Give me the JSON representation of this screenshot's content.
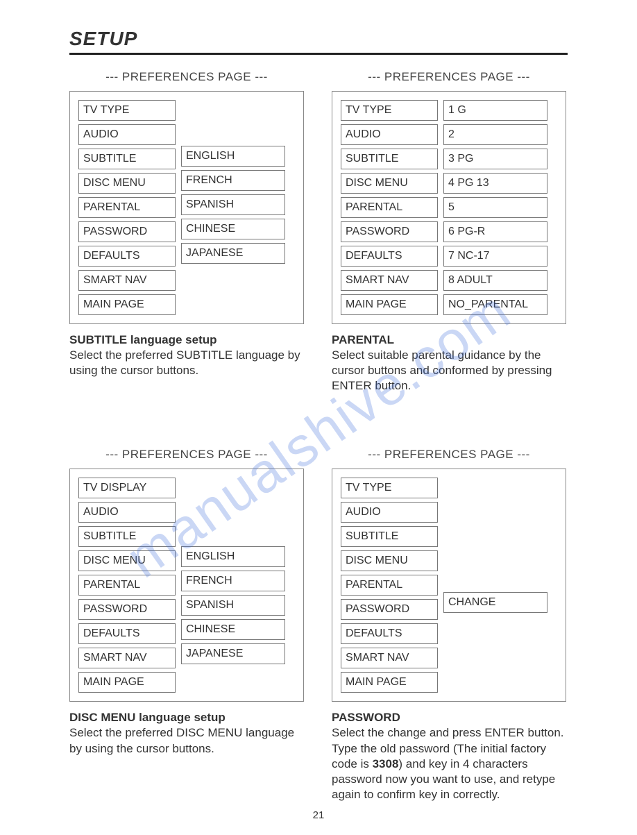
{
  "chapter_title": "SETUP",
  "page_number": "21",
  "watermark": "manualshive.com",
  "panel_heading": "--- PREFERENCES PAGE ---",
  "panels": {
    "subtitle": {
      "left": [
        "TV TYPE",
        "AUDIO",
        "SUBTITLE",
        "DISC MENU",
        "PARENTAL",
        "PASSWORD",
        "DEFAULTS",
        "SMART NAV",
        "MAIN PAGE"
      ],
      "right": [
        "",
        "",
        "ENGLISH",
        "FRENCH",
        "SPANISH",
        "CHINESE",
        "JAPANESE",
        "",
        ""
      ]
    },
    "parental": {
      "left": [
        "TV TYPE",
        "AUDIO",
        "SUBTITLE",
        "DISC MENU",
        "PARENTAL",
        "PASSWORD",
        "DEFAULTS",
        "SMART NAV",
        "MAIN PAGE"
      ],
      "right": [
        "1 G",
        "2",
        "3 PG",
        "4 PG 13",
        "5",
        "6 PG-R",
        "7 NC-17",
        "8 ADULT",
        "NO_PARENTAL"
      ]
    },
    "discmenu": {
      "left": [
        "TV DISPLAY",
        "AUDIO",
        "SUBTITLE",
        "DISC MENU",
        "PARENTAL",
        "PASSWORD",
        "DEFAULTS",
        "SMART NAV",
        "MAIN PAGE"
      ],
      "right": [
        "",
        "",
        "",
        "ENGLISH",
        "FRENCH",
        "SPANISH",
        "CHINESE",
        "JAPANESE",
        ""
      ]
    },
    "password": {
      "left": [
        "TV TYPE",
        "AUDIO",
        "SUBTITLE",
        "DISC MENU",
        "PARENTAL",
        "PASSWORD",
        "DEFAULTS",
        "SMART NAV",
        "MAIN PAGE"
      ],
      "right": [
        "",
        "",
        "",
        "",
        "",
        "CHANGE",
        "",
        "",
        ""
      ]
    }
  },
  "explain": {
    "subtitle": {
      "head": "SUBTITLE language setup",
      "body": "Select the preferred SUBTITLE language by using the cursor buttons."
    },
    "parental": {
      "head": "PARENTAL",
      "body": "Select suitable parental guidance by the cursor buttons and conformed by pressing ENTER button."
    },
    "discmenu": {
      "head": "DISC MENU language setup",
      "body": "Select the preferred DISC MENU language by using the cursor buttons."
    },
    "password": {
      "head": "PASSWORD",
      "body_pre": "Select the change and press ENTER button.  Type the old password (The initial factory code is ",
      "code": "3308",
      "body_post": ") and key in 4 characters password now you want to use, and retype again to confirm key in correctly."
    }
  }
}
